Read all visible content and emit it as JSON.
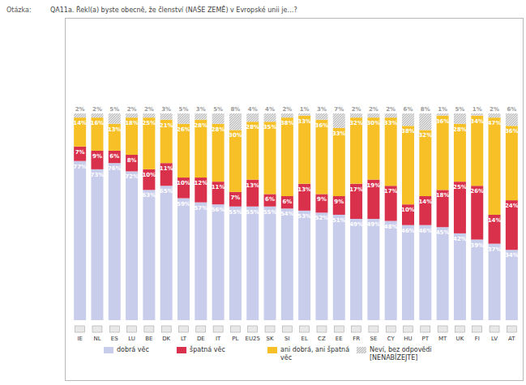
{
  "chart_data": {
    "type": "bar",
    "title": "QA11a. Řekl(a) byste obecně, že členství (NAŠE ZEMĚ) v Evropské unii je…?",
    "annotations": [
      "Otázka:"
    ],
    "categories": [
      "IE",
      "NL",
      "ES",
      "LU",
      "BE",
      "DK",
      "LT",
      "DE",
      "IT",
      "PL",
      "EU25",
      "SK",
      "SI",
      "EL",
      "CZ",
      "EE",
      "FR",
      "SE",
      "CY",
      "HU",
      "PT",
      "MT",
      "UK",
      "FI",
      "LV",
      "AT"
    ],
    "stacked": true,
    "data_labels": true,
    "tick_labels": "x",
    "grid": false,
    "legend": "bottom",
    "ylim": [
      0,
      100
    ],
    "series": [
      {
        "name": "dobrá věc",
        "color": "#c9cdec",
        "values": [
          77,
          73,
          76,
          72,
          63,
          65,
          59,
          57,
          56,
          55,
          55,
          55,
          54,
          53,
          52,
          51,
          49,
          49,
          48,
          46,
          46,
          45,
          42,
          39,
          37,
          34
        ],
        "value_labels": [
          "77%",
          "73%",
          "76%",
          "72%",
          "63%",
          "65%",
          "59%",
          "57%",
          "56%",
          "55%",
          "55%",
          "55%",
          "54%",
          "53%",
          "52%",
          "51%",
          "49%",
          "49%",
          "48%",
          "46%",
          "46%",
          "45%",
          "42%",
          "39%",
          "37%",
          "34%"
        ]
      },
      {
        "name": "špatná věc",
        "color": "#d9304c",
        "values": [
          7,
          9,
          6,
          8,
          10,
          11,
          10,
          12,
          11,
          7,
          13,
          6,
          6,
          13,
          9,
          9,
          17,
          19,
          17,
          10,
          14,
          18,
          25,
          26,
          14,
          24
        ],
        "value_labels": [
          "7%",
          "9%",
          "6%",
          "8%",
          "10%",
          "11%",
          "10%",
          "12%",
          "11%",
          "7%",
          "13%",
          "6%",
          "6%",
          "13%",
          "9%",
          "9%",
          "17%",
          "19%",
          "17%",
          "10%",
          "14%",
          "18%",
          "25%",
          "26%",
          "14%",
          "24%"
        ]
      },
      {
        "name": "ani dobrá, ani špatná věc",
        "color": "#f6c026",
        "values": [
          14,
          16,
          13,
          18,
          25,
          21,
          26,
          28,
          28,
          30,
          28,
          35,
          38,
          33,
          36,
          33,
          32,
          30,
          33,
          38,
          32,
          36,
          28,
          34,
          47,
          36
        ],
        "value_labels": [
          "14%",
          "16%",
          "13%",
          "18%",
          "25%",
          "21%",
          "26%",
          "28%",
          "28%",
          "30%",
          "28%",
          "35%",
          "38%",
          "33%",
          "36%",
          "33%",
          "32%",
          "30%",
          "33%",
          "38%",
          "32%",
          "36%",
          "28%",
          "34%",
          "47%",
          "36%"
        ]
      },
      {
        "name": "Neví, bez odpovědi [NENABÍZEJTE]",
        "color": "#c4c4c4",
        "values": [
          2,
          2,
          5,
          2,
          2,
          3,
          5,
          3,
          5,
          8,
          4,
          4,
          2,
          1,
          3,
          7,
          2,
          2,
          2,
          6,
          8,
          1,
          5,
          1,
          2,
          6
        ],
        "value_labels": [
          "2%",
          "2%",
          "5%",
          "2%",
          "2%",
          "3%",
          "5%",
          "3%",
          "5%",
          "8%",
          "4%",
          "4%",
          "2%",
          "1%",
          "3%",
          "7%",
          "2%",
          "2%",
          "2%",
          "6%",
          "8%",
          "1%",
          "5%",
          "1%",
          "2%",
          "6%"
        ]
      }
    ]
  }
}
